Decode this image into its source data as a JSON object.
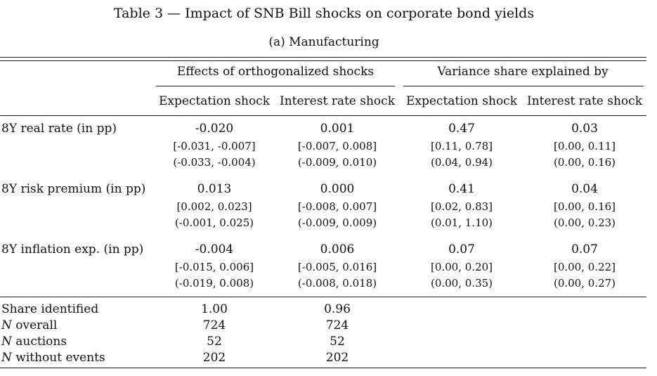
{
  "title": "Table  3 — Impact of SNB Bill shocks on corporate bond yields",
  "subtitle": "(a) Manufacturing",
  "headers": {
    "group1": "Effects of orthogonalized shocks",
    "group2": "Variance share explained by",
    "cols": [
      "Expectation shock",
      "Interest rate shock",
      "Expectation shock",
      "Interest rate shock"
    ]
  },
  "rows": [
    {
      "label": "8Y real rate (in pp)",
      "values": [
        "-0.020",
        "0.001",
        "0.47",
        "0.03"
      ],
      "ci1": [
        "[-0.031, -0.007]",
        "[-0.007, 0.008]",
        "[0.11, 0.78]",
        "[0.00, 0.11]"
      ],
      "ci2": [
        "(-0.033, -0.004)",
        "(-0.009, 0.010)",
        "(0.04, 0.94)",
        "(0.00, 0.16)"
      ]
    },
    {
      "label": "8Y risk premium (in pp)",
      "values": [
        "0.013",
        "0.000",
        "0.41",
        "0.04"
      ],
      "ci1": [
        "[0.002, 0.023]",
        "[-0.008, 0.007]",
        "[0.02, 0.83]",
        "[0.00, 0.16]"
      ],
      "ci2": [
        "(-0.001, 0.025)",
        "(-0.009, 0.009)",
        "(0.01, 1.10)",
        "(0.00, 0.23)"
      ]
    },
    {
      "label": "8Y inflation exp. (in pp)",
      "values": [
        "-0.004",
        "0.006",
        "0.07",
        "0.07"
      ],
      "ci1": [
        "[-0.015, 0.006]",
        "[-0.005, 0.016]",
        "[0.00, 0.20]",
        "[0.00, 0.22]"
      ],
      "ci2": [
        "(-0.019, 0.008)",
        "(-0.008, 0.018)",
        "(0.00, 0.35)",
        "(0.00, 0.27)"
      ]
    }
  ],
  "footer": [
    {
      "prefix": "",
      "label": "Share identified",
      "values": [
        "1.00",
        "0.96"
      ]
    },
    {
      "prefix": "N",
      "label": " overall",
      "values": [
        "724",
        "724"
      ]
    },
    {
      "prefix": "N",
      "label": " auctions",
      "values": [
        "52",
        "52"
      ]
    },
    {
      "prefix": "N",
      "label": " without events",
      "values": [
        "202",
        "202"
      ]
    }
  ]
}
